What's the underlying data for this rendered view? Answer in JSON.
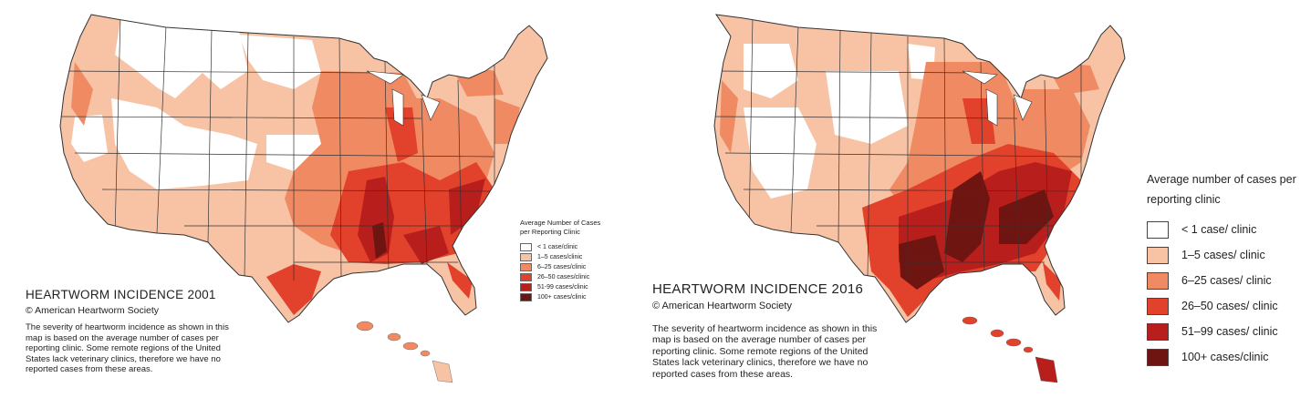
{
  "maps": [
    {
      "title": "HEARTWORM INCIDENCE 2001",
      "copyright": "© American Heartworm Society",
      "description": "The severity of heartworm incidence as shown in this map is based on the average number of cases per reporting clinic.  Some remote regions of the United States lack veterinary clinics, therefore we have no reported cases from these areas.",
      "legend": {
        "title": "Average Number of Cases per Reporting Clinic",
        "items": [
          {
            "label": "< 1 case/clinic",
            "color": "#ffffff"
          },
          {
            "label": "1–5 cases/clinic",
            "color": "#f7c3a4"
          },
          {
            "label": "6–25 cases/clinic",
            "color": "#ef8a63"
          },
          {
            "label": "26–50 cases/clinic",
            "color": "#e2412c"
          },
          {
            "label": "51-99 cases/clinic",
            "color": "#b81f1c"
          },
          {
            "label": "100+ cases/clinic",
            "color": "#6e1512"
          }
        ]
      }
    },
    {
      "title": "HEARTWORM INCIDENCE 2016",
      "copyright": "© American Heartworm Society",
      "description": "The severity of heartworm incidence as shown in this map is based on the average number of cases per reporting clinic.  Some remote regions of the United States lack veterinary clinics, therefore we have no reported cases from these areas.",
      "legend": {
        "title": "Average number of cases per reporting clinic",
        "items": [
          {
            "label": "< 1 case/ clinic",
            "color": "#ffffff"
          },
          {
            "label": "1–5 cases/ clinic",
            "color": "#f7c3a4"
          },
          {
            "label": "6–25  cases/ clinic",
            "color": "#ef8a63"
          },
          {
            "label": "26–50  cases/ clinic",
            "color": "#e2412c"
          },
          {
            "label": "51–99 cases/ clinic",
            "color": "#b81f1c"
          },
          {
            "label": "100+ cases/clinic",
            "color": "#6e1512"
          }
        ]
      }
    }
  ]
}
